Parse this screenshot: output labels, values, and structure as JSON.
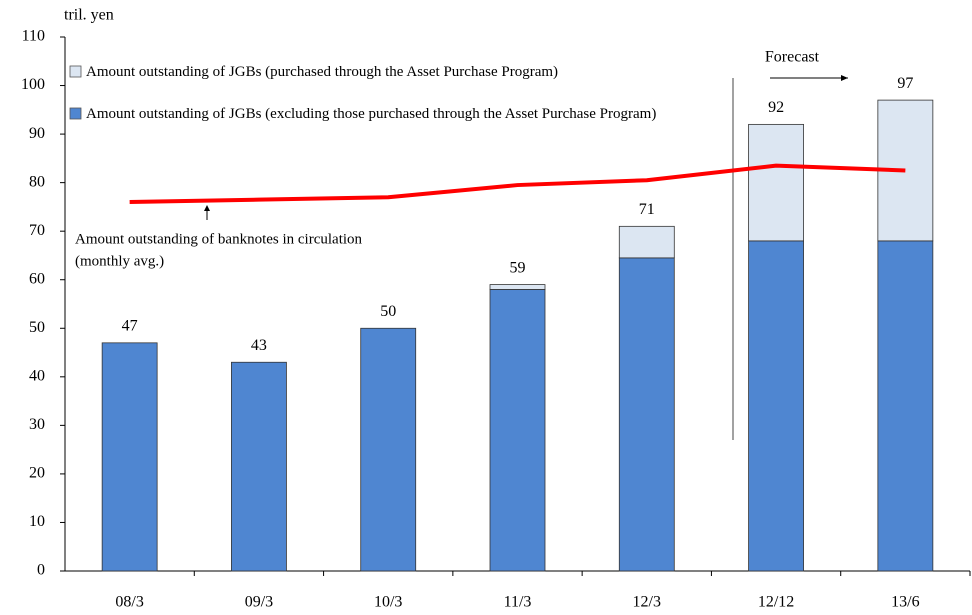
{
  "chart_data": {
    "type": "bar",
    "stacked": true,
    "y_label": "tril. yen",
    "categories": [
      "08/3",
      "09/3",
      "10/3",
      "11/3",
      "12/3",
      "12/12",
      "13/6"
    ],
    "series": [
      {
        "name": "Amount outstanding of JGBs (excluding those purchased through the Asset Purchase Program)",
        "color": "#4f86d1",
        "values": [
          47,
          43,
          50,
          58,
          64.5,
          68,
          68
        ]
      },
      {
        "name": "Amount outstanding of JGBs (purchased through the Asset Purchase Program)",
        "color": "#dce6f2",
        "values": [
          0,
          0,
          0,
          1,
          6.5,
          24,
          29
        ]
      }
    ],
    "totals": [
      47,
      43,
      50,
      59,
      71,
      92,
      97
    ],
    "line": {
      "type": "line",
      "color": "#ff0000",
      "values": [
        76,
        76.5,
        77,
        79.5,
        80.5,
        83.5,
        82.5
      ],
      "label_lines": [
        "Amount outstanding of banknotes in circulation",
        "(monthly avg.)"
      ]
    },
    "forecast_label": "Forecast",
    "ylim": [
      0,
      110
    ],
    "yticks": [
      0,
      10,
      20,
      30,
      40,
      50,
      60,
      70,
      80,
      90,
      100,
      110
    ]
  }
}
